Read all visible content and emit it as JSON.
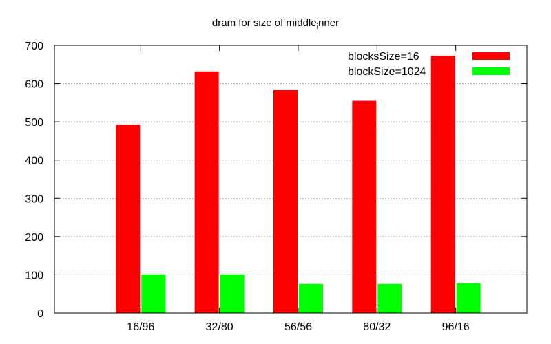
{
  "chart_data": {
    "type": "bar",
    "title": "dram for size of middle",
    "title_subscript": "i",
    "title_suffix": "nner",
    "categories": [
      "16/96",
      "32/80",
      "56/56",
      "80/32",
      "96/16"
    ],
    "series": [
      {
        "name": "blocksSize=16",
        "values": [
          493,
          632,
          583,
          555,
          673
        ],
        "color": "#ff0000"
      },
      {
        "name": "blockSize=1024",
        "values": [
          101,
          101,
          76,
          76,
          78
        ],
        "color": "#00ff00"
      }
    ],
    "ylim": [
      0,
      700
    ],
    "yticks": [
      0,
      100,
      200,
      300,
      400,
      500,
      600,
      700
    ],
    "xlabel": "",
    "ylabel": "",
    "grid": "y-dashed",
    "legend_position": "top-right"
  }
}
